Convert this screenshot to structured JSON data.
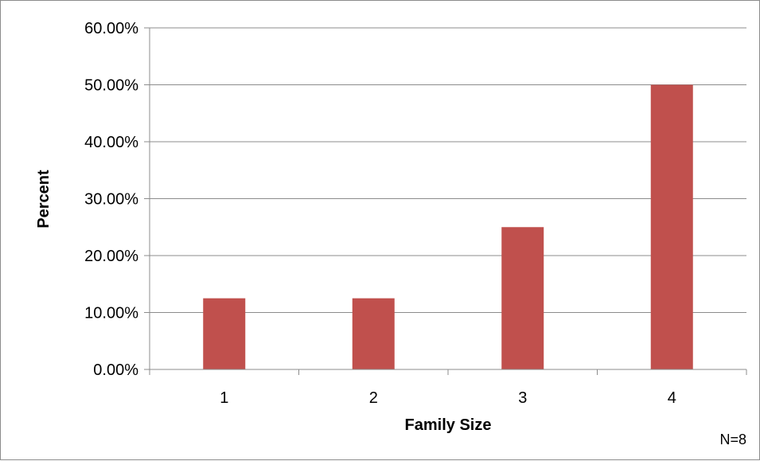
{
  "chart_data": {
    "type": "bar",
    "categories": [
      "1",
      "2",
      "3",
      "4"
    ],
    "values": [
      12.5,
      12.5,
      25.0,
      50.0
    ],
    "title": "",
    "xlabel": "Family Size",
    "ylabel": "Percent",
    "ylim": [
      0,
      60
    ],
    "ytick_values": [
      0,
      10,
      20,
      30,
      40,
      50,
      60
    ],
    "ytick_labels": [
      "0.00%",
      "10.00%",
      "20.00%",
      "30.00%",
      "40.00%",
      "50.00%",
      "60.00%"
    ],
    "grid": true,
    "legend": "none",
    "bar_color": "#c0504d",
    "note": "N=8"
  }
}
